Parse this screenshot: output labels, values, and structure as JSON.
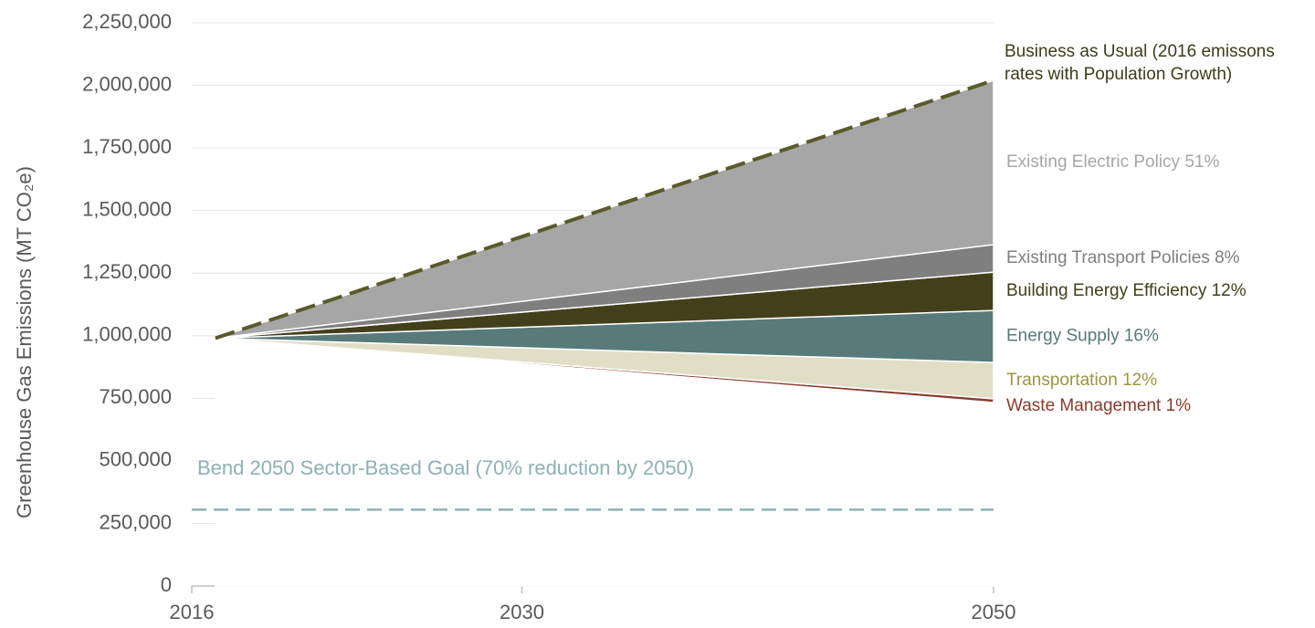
{
  "chart_data": {
    "type": "stacked_area",
    "y_label": "Greenhouse Gas Emissions (MT CO₂e)",
    "x": [
      2017,
      2050
    ],
    "xlim": [
      2016,
      2050
    ],
    "xticks": [
      2016,
      2030,
      2050
    ],
    "ylim": [
      0,
      2250000
    ],
    "yticks": [
      0,
      {
        "value": 250000,
        "label": "250,000"
      },
      {
        "value": 500000,
        "label": "500,000"
      },
      {
        "value": 750000,
        "label": "750,000"
      },
      {
        "value": 1000000,
        "label": "1,000,000"
      },
      {
        "value": 1250000,
        "label": "1,250,000"
      },
      {
        "value": 1500000,
        "label": "1,500,000"
      },
      {
        "value": 1750000,
        "label": "1,750,000"
      },
      {
        "value": 2000000,
        "label": "2,000,000"
      },
      {
        "value": 2250000,
        "label": "2,250,000"
      }
    ],
    "grid": true,
    "base": {
      "color": "#ffffff",
      "values": [
        990000,
        733000
      ]
    },
    "series": [
      {
        "name": "Waste Management 1%",
        "color": "#8b3a2e",
        "values": [
          0,
          15000
        ]
      },
      {
        "name": "Transportation 12%",
        "color": "#e0dfc6",
        "label_color": "#9a9645",
        "values": [
          0,
          145000
        ]
      },
      {
        "name": "Energy Supply 16%",
        "color": "#587a7a",
        "values": [
          0,
          208000
        ]
      },
      {
        "name": "Building Energy Efficiency 12%",
        "color": "#433f1a",
        "values": [
          0,
          153000
        ]
      },
      {
        "name": "Existing Transport Policies 8%",
        "color": "#7f7f7f",
        "values": [
          0,
          110000
        ]
      },
      {
        "name": "Existing Electric Policy 51%",
        "color": "#a6a6a6",
        "values": [
          0,
          656000
        ]
      }
    ],
    "reference_line": {
      "name": "Business as Usual (2016 emissons rates with Population Growth)",
      "color": "#5a5a2a",
      "values": [
        990000,
        2020000
      ]
    },
    "goal": {
      "label": "Bend 2050 Sector-Based Goal (70% reduction by 2050)",
      "color": "#8fb0b5",
      "value": 305000
    }
  }
}
